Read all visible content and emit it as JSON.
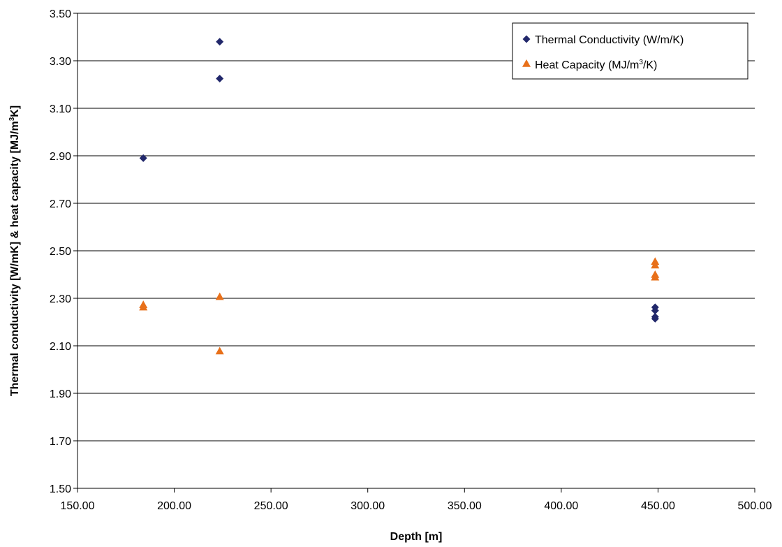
{
  "chart_data": {
    "type": "scatter",
    "title": "",
    "xlabel": "Depth [m]",
    "ylabel_main": "Thermal conductivity [W/mK] & heat capacity [MJ/m",
    "ylabel_sup": "3",
    "ylabel_end": "K]",
    "xlim": [
      150,
      500
    ],
    "ylim": [
      1.5,
      3.5
    ],
    "x_ticks": [
      150,
      200,
      250,
      300,
      350,
      400,
      450,
      500
    ],
    "x_tick_labels": [
      "150.00",
      "200.00",
      "250.00",
      "300.00",
      "350.00",
      "400.00",
      "450.00",
      "500.00"
    ],
    "y_ticks": [
      1.5,
      1.7,
      1.9,
      2.1,
      2.3,
      2.5,
      2.7,
      2.9,
      3.1,
      3.3,
      3.5
    ],
    "y_tick_labels": [
      "1.50",
      "1.70",
      "1.90",
      "2.10",
      "2.30",
      "2.50",
      "2.70",
      "2.90",
      "3.10",
      "3.30",
      "3.50"
    ],
    "grid": "horizontal",
    "legend_position": "top-right",
    "series": [
      {
        "name_main": "Thermal Conductivity (W/m/K)",
        "name_sup": "",
        "name_end": "",
        "marker": "diamond",
        "color": "#22286b",
        "points": [
          {
            "x": 184,
            "y": 2.89
          },
          {
            "x": 223.5,
            "y": 3.38
          },
          {
            "x": 223.5,
            "y": 3.225
          },
          {
            "x": 448.5,
            "y": 2.262
          },
          {
            "x": 448.5,
            "y": 2.248
          },
          {
            "x": 448.5,
            "y": 2.222
          },
          {
            "x": 448.5,
            "y": 2.214
          }
        ]
      },
      {
        "name_main": "Heat Capacity (MJ/m",
        "name_sup": "3",
        "name_end": "/K)",
        "marker": "triangle",
        "color": "#e8701a",
        "points": [
          {
            "x": 184,
            "y": 2.273
          },
          {
            "x": 184,
            "y": 2.263
          },
          {
            "x": 223.5,
            "y": 2.307
          },
          {
            "x": 223.5,
            "y": 2.078
          },
          {
            "x": 448.5,
            "y": 2.455
          },
          {
            "x": 448.5,
            "y": 2.44
          },
          {
            "x": 448.5,
            "y": 2.4
          },
          {
            "x": 448.5,
            "y": 2.389
          }
        ]
      }
    ]
  }
}
